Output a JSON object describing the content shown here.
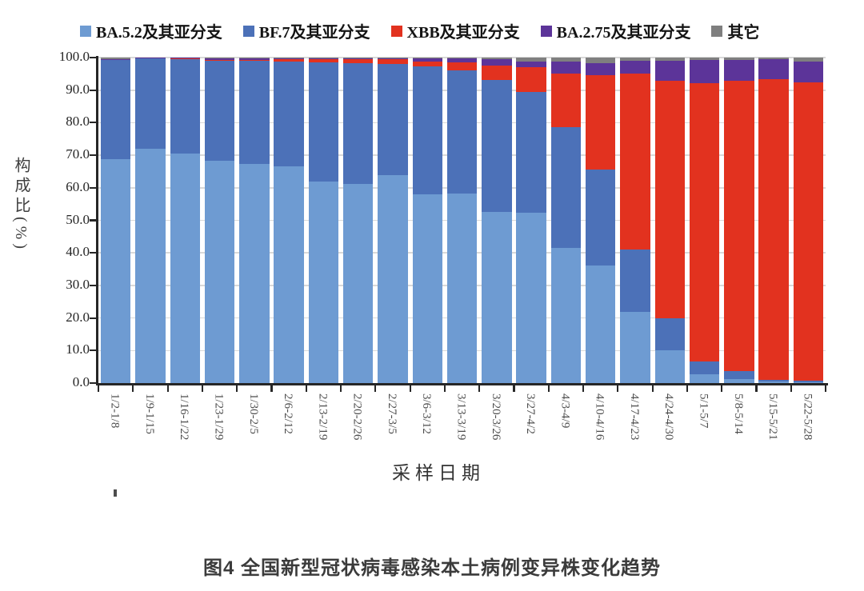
{
  "caption": "图4 全国新型冠状病毒感染本土病例变异株变化趋势",
  "colors": {
    "background": "#ffffff",
    "axis": "#262626",
    "gridline": "#d9d9d9",
    "y_tick_label": "#262626",
    "x_tick_label": "#4d4d4d",
    "caption_text": "#3b3b3b"
  },
  "chart_data": {
    "type": "bar",
    "stacked": true,
    "unit": "%",
    "title": "",
    "xlabel": "采样日期",
    "ylabel": "构成比(%)",
    "ylim": [
      0,
      100
    ],
    "y_ticks": [
      0,
      10,
      20,
      30,
      40,
      50,
      60,
      70,
      80,
      90,
      100
    ],
    "grid": true,
    "legend_position": "top",
    "categories": [
      "1/2-1/8",
      "1/9-1/15",
      "1/16-1/22",
      "1/23-1/29",
      "1/30-2/5",
      "2/6-2/12",
      "2/13-2/19",
      "2/20-2/26",
      "2/27-3/5",
      "3/6-3/12",
      "3/13-3/19",
      "3/20-3/26",
      "3/27-4/2",
      "4/3-4/9",
      "4/10-4/16",
      "4/17-4/23",
      "4/24-4/30",
      "5/1-5/7",
      "5/8-5/14",
      "5/15-5/21",
      "5/22-5/28"
    ],
    "series": [
      {
        "name": "BA.5.2及其亚分支",
        "color": "#6e9bd2",
        "values": [
          68.8,
          72.0,
          70.6,
          68.3,
          67.3,
          66.5,
          62.0,
          61.3,
          64.0,
          58.0,
          58.3,
          52.6,
          52.3,
          41.5,
          36.2,
          21.9,
          10.0,
          2.6,
          1.2,
          0.4,
          0.3
        ]
      },
      {
        "name": "BF.7及其亚分支",
        "color": "#4c71b8",
        "values": [
          30.4,
          27.7,
          29.0,
          30.8,
          31.7,
          32.3,
          36.6,
          36.9,
          34.0,
          39.2,
          37.7,
          40.5,
          37.1,
          37.2,
          29.5,
          19.2,
          9.8,
          4.1,
          2.4,
          0.5,
          0.4
        ]
      },
      {
        "name": "XBB及其亚分支",
        "color": "#e2321f",
        "values": [
          0.1,
          0.1,
          0.1,
          0.1,
          0.2,
          0.8,
          0.9,
          1.3,
          1.5,
          1.6,
          2.6,
          4.5,
          7.7,
          16.3,
          29.0,
          54.0,
          73.0,
          85.5,
          89.4,
          92.4,
          91.8
        ]
      },
      {
        "name": "BA.2.75及其亚分支",
        "color": "#5c3499",
        "values": [
          0.1,
          0.1,
          0.2,
          0.6,
          0.6,
          0.2,
          0.3,
          0.3,
          0.3,
          0.9,
          1.1,
          2.0,
          1.7,
          3.9,
          3.6,
          3.9,
          6.2,
          7.0,
          6.3,
          6.1,
          6.3
        ]
      },
      {
        "name": "其它",
        "color": "#7f7f7f",
        "values": [
          0.6,
          0.1,
          0.1,
          0.2,
          0.2,
          0.2,
          0.2,
          0.2,
          0.2,
          0.3,
          0.3,
          0.4,
          1.2,
          1.1,
          1.7,
          1.0,
          1.0,
          0.8,
          0.7,
          0.6,
          1.2
        ]
      }
    ]
  }
}
